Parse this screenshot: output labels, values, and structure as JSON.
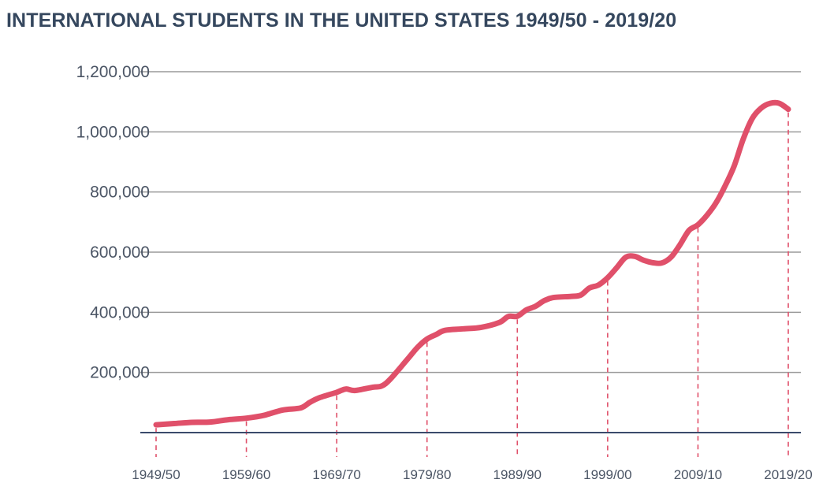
{
  "title": "INTERNATIONAL STUDENTS IN THE UNITED STATES 1949/50 - 2019/20",
  "chart_data": {
    "type": "line",
    "title": "INTERNATIONAL STUDENTS IN THE UNITED STATES 1949/50 - 2019/20",
    "xlabel": "",
    "ylabel": "",
    "ylim": [
      0,
      1300000
    ],
    "y_ticks": [
      200000,
      400000,
      600000,
      800000,
      1000000,
      1200000
    ],
    "y_tick_labels": [
      "200,000",
      "400,000",
      "600,000",
      "800,000",
      "1,000,000",
      "1,200,000"
    ],
    "x_tick_labels": [
      "1949/50",
      "1959/60",
      "1969/70",
      "1979/80",
      "1989/90",
      "1999/00",
      "2009/10",
      "2019/20"
    ],
    "x_tick_years": [
      1949,
      1959,
      1969,
      1979,
      1989,
      1999,
      2009,
      2019
    ],
    "grid": true,
    "legend": "none",
    "line_color": "#e0506a",
    "grid_color": "#9a9a9a",
    "axis_color": "#3a4a6b",
    "series": [
      {
        "x": [
          1949,
          1951,
          1953,
          1955,
          1957,
          1959,
          1961,
          1963,
          1965,
          1966,
          1967,
          1969,
          1970,
          1971,
          1973,
          1974,
          1975,
          1977,
          1978,
          1979,
          1980,
          1981,
          1983,
          1985,
          1987,
          1988,
          1989,
          1990,
          1991,
          1992,
          1993,
          1995,
          1996,
          1997,
          1998,
          1999,
          2000,
          2001,
          2002,
          2003,
          2004,
          2005,
          2006,
          2007,
          2008,
          2009,
          2010,
          2011,
          2012,
          2013,
          2014,
          2015,
          2016,
          2017,
          2018,
          2019
        ],
        "y": [
          26000,
          30000,
          34000,
          35000,
          43000,
          48000,
          58000,
          75000,
          82000,
          100000,
          115000,
          134000,
          145000,
          140000,
          151000,
          155000,
          180000,
          250000,
          285000,
          311000,
          326000,
          340000,
          345000,
          350000,
          366000,
          386000,
          387000,
          408000,
          420000,
          439000,
          449000,
          453000,
          457000,
          481000,
          491000,
          515000,
          548000,
          583000,
          586000,
          573000,
          565000,
          564000,
          583000,
          624000,
          672000,
          691000,
          723000,
          764000,
          820000,
          886000,
          975000,
          1044000,
          1079000,
          1095000,
          1095000,
          1075000
        ]
      }
    ]
  }
}
